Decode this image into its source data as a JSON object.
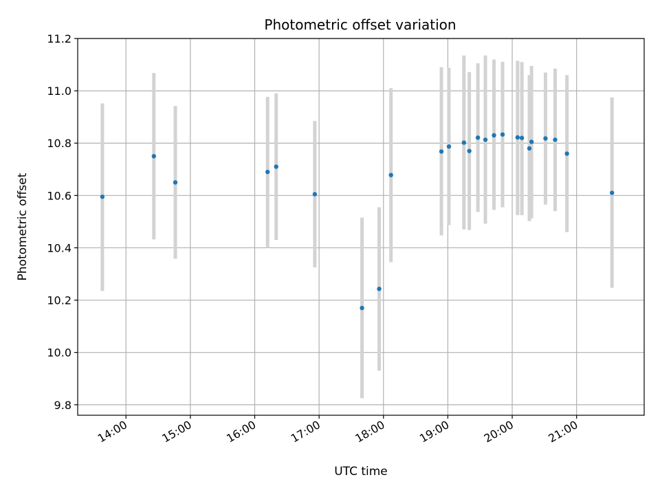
{
  "chart_data": {
    "type": "scatter",
    "title": "Photometric offset variation",
    "xlabel": "UTC time",
    "ylabel": "Photometric offset",
    "x_unit": "UTC time (HH:MM)",
    "xlim": [
      "13:15",
      "22:03"
    ],
    "ylim": [
      9.76,
      11.2
    ],
    "x_ticks": [
      "14:00",
      "15:00",
      "16:00",
      "17:00",
      "18:00",
      "19:00",
      "20:00",
      "21:00"
    ],
    "y_ticks": [
      "9.8",
      "10.0",
      "10.2",
      "10.4",
      "10.6",
      "10.8",
      "11.0",
      "11.2"
    ],
    "grid": true,
    "point_color": "#1f77b4",
    "errorbar_color": "#d3d3d3",
    "points": [
      {
        "x": "13:38",
        "y": 10.595,
        "err_low": 10.235,
        "err_high": 10.952
      },
      {
        "x": "14:26",
        "y": 10.75,
        "err_low": 10.432,
        "err_high": 11.068
      },
      {
        "x": "14:46",
        "y": 10.65,
        "err_low": 10.358,
        "err_high": 10.942
      },
      {
        "x": "16:12",
        "y": 10.69,
        "err_low": 10.4,
        "err_high": 10.977
      },
      {
        "x": "16:20",
        "y": 10.71,
        "err_low": 10.43,
        "err_high": 10.99
      },
      {
        "x": "16:56",
        "y": 10.605,
        "err_low": 10.325,
        "err_high": 10.885
      },
      {
        "x": "17:40",
        "y": 10.17,
        "err_low": 9.825,
        "err_high": 10.515
      },
      {
        "x": "17:56",
        "y": 10.243,
        "err_low": 9.93,
        "err_high": 10.555
      },
      {
        "x": "18:07",
        "y": 10.678,
        "err_low": 10.345,
        "err_high": 11.01
      },
      {
        "x": "18:54",
        "y": 10.768,
        "err_low": 10.447,
        "err_high": 11.09
      },
      {
        "x": "19:01",
        "y": 10.787,
        "err_low": 10.487,
        "err_high": 11.088
      },
      {
        "x": "19:15",
        "y": 10.802,
        "err_low": 10.47,
        "err_high": 11.135
      },
      {
        "x": "19:20",
        "y": 10.77,
        "err_low": 10.468,
        "err_high": 11.072
      },
      {
        "x": "19:28",
        "y": 10.821,
        "err_low": 10.537,
        "err_high": 11.105
      },
      {
        "x": "19:35",
        "y": 10.813,
        "err_low": 10.492,
        "err_high": 11.135
      },
      {
        "x": "19:43",
        "y": 10.83,
        "err_low": 10.545,
        "err_high": 11.12
      },
      {
        "x": "19:51",
        "y": 10.833,
        "err_low": 10.555,
        "err_high": 11.111
      },
      {
        "x": "20:05",
        "y": 10.822,
        "err_low": 10.525,
        "err_high": 11.115
      },
      {
        "x": "20:09",
        "y": 10.82,
        "err_low": 10.525,
        "err_high": 11.11
      },
      {
        "x": "20:16",
        "y": 10.78,
        "err_low": 10.502,
        "err_high": 11.06
      },
      {
        "x": "20:18",
        "y": 10.805,
        "err_low": 10.513,
        "err_high": 11.095
      },
      {
        "x": "20:31",
        "y": 10.818,
        "err_low": 10.565,
        "err_high": 11.07
      },
      {
        "x": "20:40",
        "y": 10.813,
        "err_low": 10.54,
        "err_high": 11.085
      },
      {
        "x": "20:51",
        "y": 10.76,
        "err_low": 10.46,
        "err_high": 11.06
      },
      {
        "x": "21:33",
        "y": 10.61,
        "err_low": 10.247,
        "err_high": 10.975
      }
    ]
  }
}
